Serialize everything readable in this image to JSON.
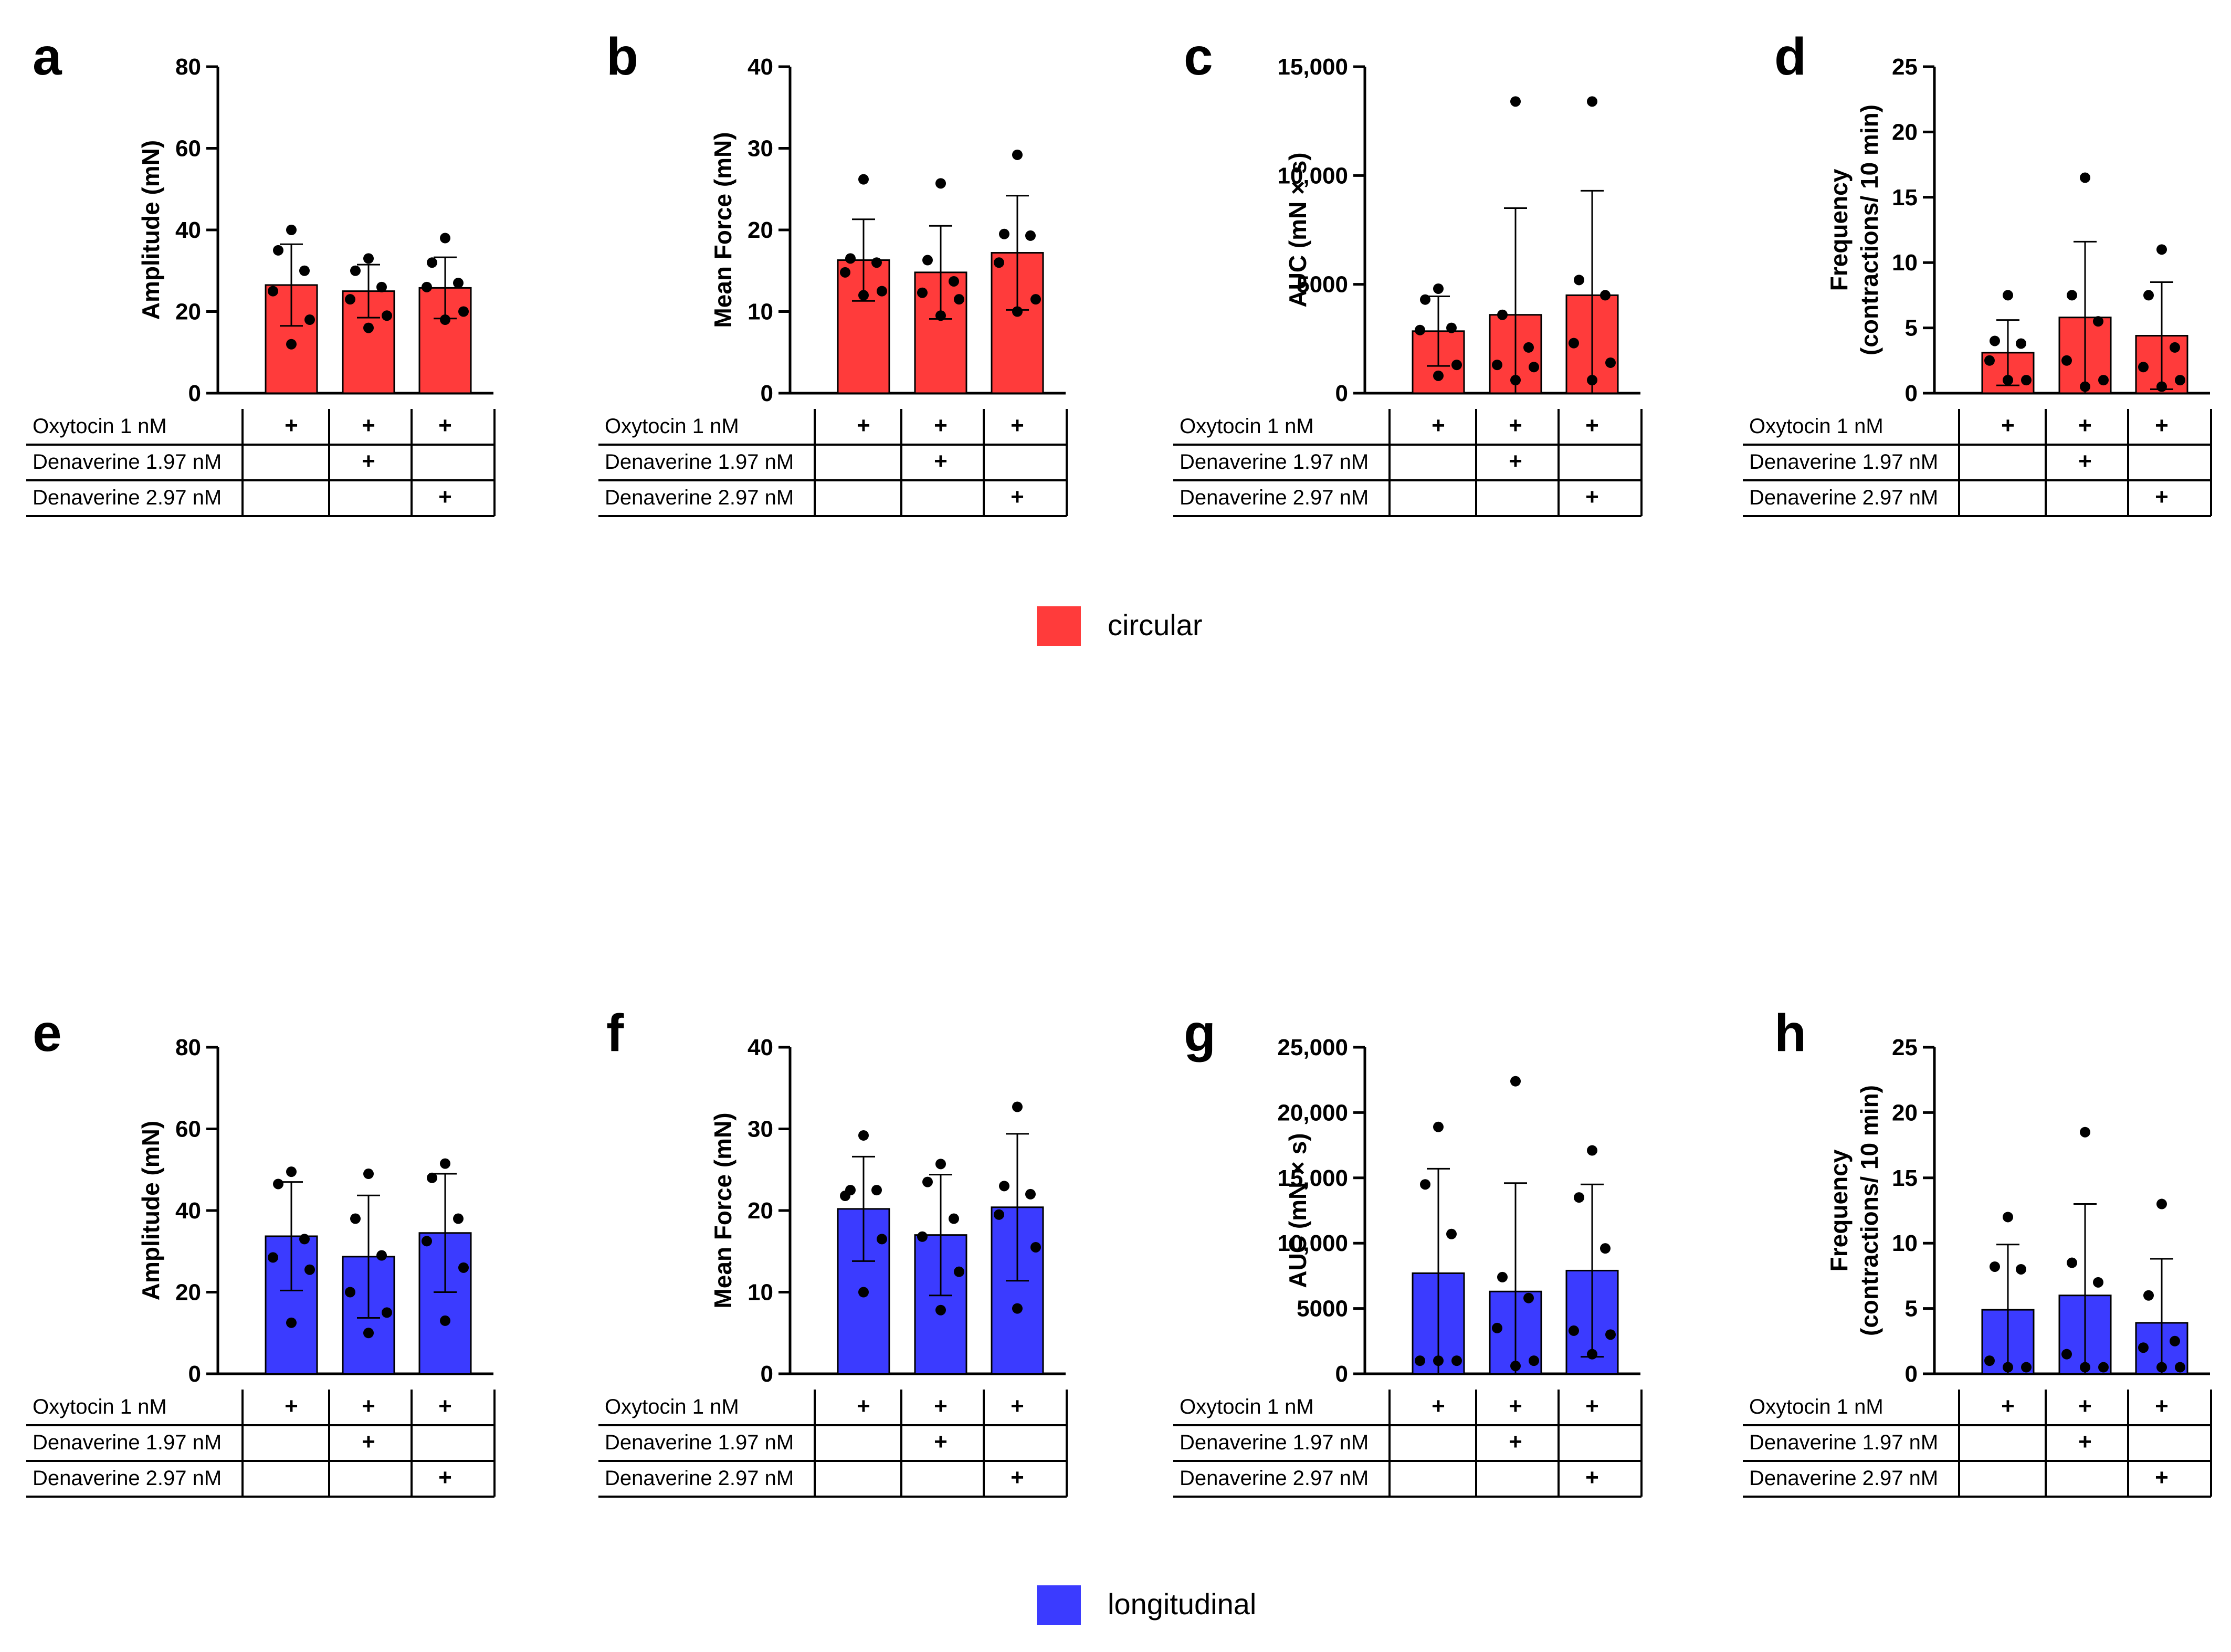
{
  "figure_title": "",
  "legend": [
    {
      "label": "circular",
      "color": "#ff3b3b"
    },
    {
      "label": "longitudinal",
      "color": "#3b3bff"
    }
  ],
  "table_rows": [
    "Oxytocin 1 nM",
    "Denaverine 1.97 nM",
    "Denaverine 2.97 nM"
  ],
  "plus_symbol": "+",
  "chart_data": [
    {
      "panel": "a",
      "type": "bar",
      "group": "circular",
      "ylabel": "Amplitude (mN)",
      "ylim": [
        0,
        80
      ],
      "yticks": [
        "0",
        "20",
        "40",
        "60",
        "80"
      ],
      "treatments": [
        [
          true,
          false,
          false
        ],
        [
          true,
          true,
          false
        ],
        [
          true,
          false,
          true
        ]
      ],
      "values": [
        26.5,
        25,
        25.8
      ],
      "sd": [
        10,
        6.5,
        7.5
      ],
      "points": [
        [
          40,
          35,
          30,
          25,
          18,
          12
        ],
        [
          33,
          30,
          26,
          23,
          19,
          16
        ],
        [
          38,
          32,
          27,
          26,
          20,
          18
        ]
      ]
    },
    {
      "panel": "b",
      "type": "bar",
      "group": "circular",
      "ylabel": "Mean Force (mN)",
      "ylim": [
        0,
        40
      ],
      "yticks": [
        "0",
        "10",
        "20",
        "30",
        "40"
      ],
      "treatments": [
        [
          true,
          false,
          false
        ],
        [
          true,
          true,
          false
        ],
        [
          true,
          false,
          true
        ]
      ],
      "values": [
        16.3,
        14.8,
        17.2
      ],
      "sd": [
        5,
        5.7,
        7
      ],
      "points": [
        [
          26.2,
          16.5,
          16,
          14.8,
          12.5,
          12
        ],
        [
          25.7,
          16.3,
          13.7,
          12.3,
          11.5,
          9.5
        ],
        [
          29.2,
          19.5,
          19.3,
          16,
          11.5,
          10
        ]
      ]
    },
    {
      "panel": "c",
      "type": "bar",
      "group": "circular",
      "ylabel": "AUC (mN × s)",
      "ylim": [
        0,
        15000
      ],
      "yticks": [
        "0",
        "5000",
        "10,000",
        "15,000"
      ],
      "treatments": [
        [
          true,
          false,
          false
        ],
        [
          true,
          true,
          false
        ],
        [
          true,
          false,
          true
        ]
      ],
      "values": [
        2850,
        3600,
        4500
      ],
      "sd": [
        1600,
        4900,
        4800
      ],
      "points": [
        [
          4800,
          4300,
          3000,
          2900,
          1300,
          800
        ],
        [
          13400,
          3600,
          2100,
          1300,
          1200,
          600
        ],
        [
          13400,
          5200,
          4500,
          2300,
          1400,
          600
        ]
      ]
    },
    {
      "panel": "d",
      "type": "bar",
      "group": "circular",
      "ylabel": "Frequency (contractions/ 10 min)",
      "ylabel_lines": [
        "Frequency",
        "(contractions/ 10 min)"
      ],
      "ylim": [
        0,
        25
      ],
      "yticks": [
        "0",
        "5",
        "10",
        "15",
        "20",
        "25"
      ],
      "treatments": [
        [
          true,
          false,
          false
        ],
        [
          true,
          true,
          false
        ],
        [
          true,
          false,
          true
        ]
      ],
      "values": [
        3.1,
        5.8,
        4.4
      ],
      "sd": [
        2.5,
        5.8,
        4.1
      ],
      "points": [
        [
          7.5,
          4,
          3.8,
          2.5,
          1,
          1
        ],
        [
          16.5,
          7.5,
          5.5,
          2.5,
          1,
          0.5
        ],
        [
          11,
          7.5,
          3.5,
          2,
          1,
          0.5
        ]
      ]
    },
    {
      "panel": "e",
      "type": "bar",
      "group": "longitudinal",
      "ylabel": "Amplitude (mN)",
      "ylim": [
        0,
        80
      ],
      "yticks": [
        "0",
        "20",
        "40",
        "60",
        "80"
      ],
      "treatments": [
        [
          true,
          false,
          false
        ],
        [
          true,
          true,
          false
        ],
        [
          true,
          false,
          true
        ]
      ],
      "values": [
        33.7,
        28.7,
        34.5
      ],
      "sd": [
        13.3,
        15,
        14.5
      ],
      "points": [
        [
          49.5,
          46.5,
          33,
          28.5,
          25.5,
          12.5
        ],
        [
          49,
          38,
          29,
          20,
          15,
          10
        ],
        [
          51.5,
          48,
          38,
          32.5,
          26,
          13
        ]
      ]
    },
    {
      "panel": "f",
      "type": "bar",
      "group": "longitudinal",
      "ylabel": "Mean Force (mN)",
      "ylim": [
        0,
        40
      ],
      "yticks": [
        "0",
        "10",
        "20",
        "30",
        "40"
      ],
      "treatments": [
        [
          true,
          false,
          false
        ],
        [
          true,
          true,
          false
        ],
        [
          true,
          false,
          true
        ]
      ],
      "values": [
        20.2,
        17,
        20.4
      ],
      "sd": [
        6.4,
        7.4,
        9
      ],
      "points": [
        [
          29.2,
          22.5,
          22.5,
          21.8,
          16.5,
          10
        ],
        [
          25.7,
          23.5,
          19,
          16.8,
          12.5,
          7.8
        ],
        [
          32.7,
          23,
          22,
          19.5,
          15.5,
          8
        ]
      ]
    },
    {
      "panel": "g",
      "type": "bar",
      "group": "longitudinal",
      "ylabel": "AUC (mN × s)",
      "ylim": [
        0,
        25000
      ],
      "yticks": [
        "0",
        "5000",
        "10,000",
        "15,000",
        "20,000",
        "25,000"
      ],
      "treatments": [
        [
          true,
          false,
          false
        ],
        [
          true,
          true,
          false
        ],
        [
          true,
          false,
          true
        ]
      ],
      "values": [
        7700,
        6300,
        7900
      ],
      "sd": [
        8000,
        8300,
        6600
      ],
      "points": [
        [
          18900,
          14500,
          10700,
          1000,
          1000,
          1000
        ],
        [
          22400,
          7400,
          5800,
          3500,
          1000,
          600
        ],
        [
          17100,
          13500,
          9600,
          3300,
          3000,
          1500
        ]
      ]
    },
    {
      "panel": "h",
      "type": "bar",
      "group": "longitudinal",
      "ylabel": "Frequency (contractions/ 10 min)",
      "ylabel_lines": [
        "Frequency",
        "(contractions/ 10 min)"
      ],
      "ylim": [
        0,
        25
      ],
      "yticks": [
        "0",
        "5",
        "10",
        "15",
        "20",
        "25"
      ],
      "treatments": [
        [
          true,
          false,
          false
        ],
        [
          true,
          true,
          false
        ],
        [
          true,
          false,
          true
        ]
      ],
      "values": [
        4.9,
        6,
        3.9
      ],
      "sd": [
        5,
        7,
        4.9
      ],
      "points": [
        [
          12,
          8.2,
          8,
          1,
          0.5,
          0.5
        ],
        [
          18.5,
          8.5,
          7,
          1.5,
          0.5,
          0.5
        ],
        [
          13,
          6,
          2.5,
          2,
          0.5,
          0.5
        ]
      ]
    }
  ]
}
